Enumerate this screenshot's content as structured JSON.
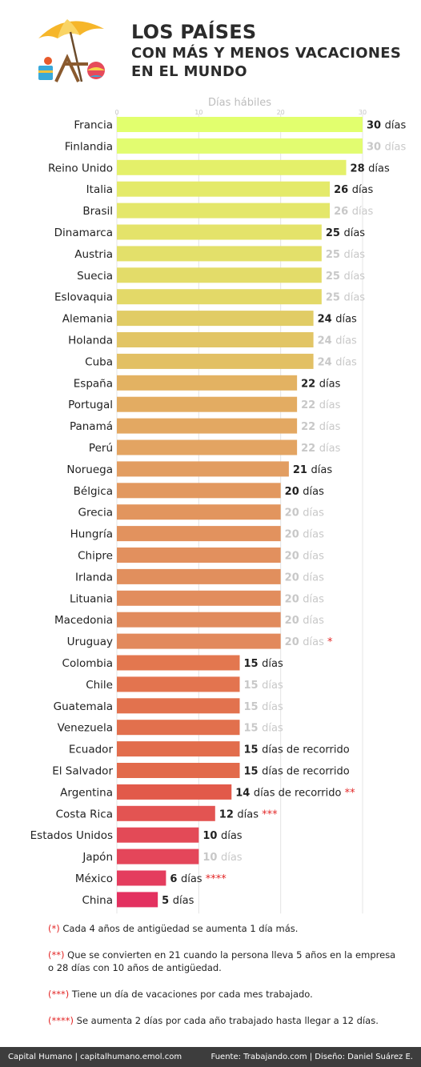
{
  "header": {
    "title_line1": "LOS PAÍSES",
    "title_line2": "CON MÁS Y MENOS VACACIONES",
    "title_line3": "EN EL MUNDO"
  },
  "chart_data": {
    "type": "bar",
    "orientation": "horizontal",
    "xlabel": "Días hábiles",
    "xlim": [
      0,
      30
    ],
    "xticks": [
      0,
      10,
      20,
      30
    ],
    "grid": true,
    "value_suffix": "días",
    "categories": [
      "Francia",
      "Finlandia",
      "Reino Unido",
      "Italia",
      "Brasil",
      "Dinamarca",
      "Austria",
      "Suecia",
      "Eslovaquia",
      "Alemania",
      "Holanda",
      "Cuba",
      "España",
      "Portugal",
      "Panamá",
      "Perú",
      "Noruega",
      "Bélgica",
      "Grecia",
      "Hungría",
      "Chipre",
      "Irlanda",
      "Lituania",
      "Macedonia",
      "Uruguay",
      "Colombia",
      "Chile",
      "Guatemala",
      "Venezuela",
      "Ecuador",
      "El Salvador",
      "Argentina",
      "Costa Rica",
      "Estados Unidos",
      "Japón",
      "México",
      "China"
    ],
    "values": [
      30,
      30,
      28,
      26,
      26,
      25,
      25,
      25,
      25,
      24,
      24,
      24,
      22,
      22,
      22,
      22,
      21,
      20,
      20,
      20,
      20,
      20,
      20,
      20,
      20,
      15,
      15,
      15,
      15,
      15,
      15,
      14,
      12,
      10,
      10,
      6,
      5
    ],
    "emphasized": [
      true,
      false,
      true,
      true,
      false,
      true,
      false,
      false,
      false,
      true,
      false,
      false,
      true,
      false,
      false,
      false,
      true,
      true,
      false,
      false,
      false,
      false,
      false,
      false,
      false,
      true,
      false,
      false,
      false,
      true,
      true,
      true,
      true,
      true,
      false,
      true,
      true
    ],
    "extra_text": [
      "",
      "",
      "",
      "",
      "",
      "",
      "",
      "",
      "",
      "",
      "",
      "",
      "",
      "",
      "",
      "",
      "",
      "",
      "",
      "",
      "",
      "",
      "",
      "",
      "",
      "",
      "",
      "",
      "",
      "de recorrido",
      "de recorrido",
      "de recorrido",
      "",
      "",
      "",
      "",
      ""
    ],
    "markers": [
      "",
      "",
      "",
      "",
      "",
      "",
      "",
      "",
      "",
      "",
      "",
      "",
      "",
      "",
      "",
      "",
      "",
      "",
      "",
      "",
      "",
      "",
      "",
      "",
      "*",
      "",
      "",
      "",
      "",
      "",
      "",
      "**",
      "***",
      "",
      "",
      "****",
      ""
    ],
    "bar_colors": [
      "#e2ff6e",
      "#e2fc70",
      "#e4f06a",
      "#e4ea6a",
      "#e4e76a",
      "#e4e36a",
      "#e3e06a",
      "#e3dc69",
      "#e3d968",
      "#e1cc65",
      "#e2c565",
      "#e2c064",
      "#e3b262",
      "#e3ac62",
      "#e3a862",
      "#e3a462",
      "#e29d61",
      "#e2985f",
      "#e2955e",
      "#e2925e",
      "#e2905e",
      "#e18f5d",
      "#e28d5d",
      "#e18b5d",
      "#e2895c",
      "#e3774f",
      "#e3744f",
      "#e2724e",
      "#e2704d",
      "#e26d4c",
      "#e26a4b",
      "#e25a4a",
      "#e35452",
      "#e34a57",
      "#e4465a",
      "#e43d5e",
      "#e33160"
    ],
    "dim_label_color": "#c8c8c8",
    "strong_label_color": "#222222",
    "marker_color": "#e32626"
  },
  "notes": [
    {
      "marker": "(*)",
      "text": " Cada 4 años de antigüedad se aumenta 1 día más."
    },
    {
      "marker": "(**)",
      "text": " Que se convierten en 21 cuando la persona lleva 5 años en la empresa o 28 días con 10 años de antigüedad."
    },
    {
      "marker": "(***)",
      "text": " Tiene un día de vacaciones por cada mes trabajado."
    },
    {
      "marker": "(****)",
      "text": " Se aumenta 2 días por cada año trabajado hasta llegar a 12 días."
    }
  ],
  "footer": {
    "left": "Capital Humano   |   capitalhumano.emol.com",
    "right": "Fuente: Trabajando.com    |   Diseño: Daniel Suárez E."
  }
}
